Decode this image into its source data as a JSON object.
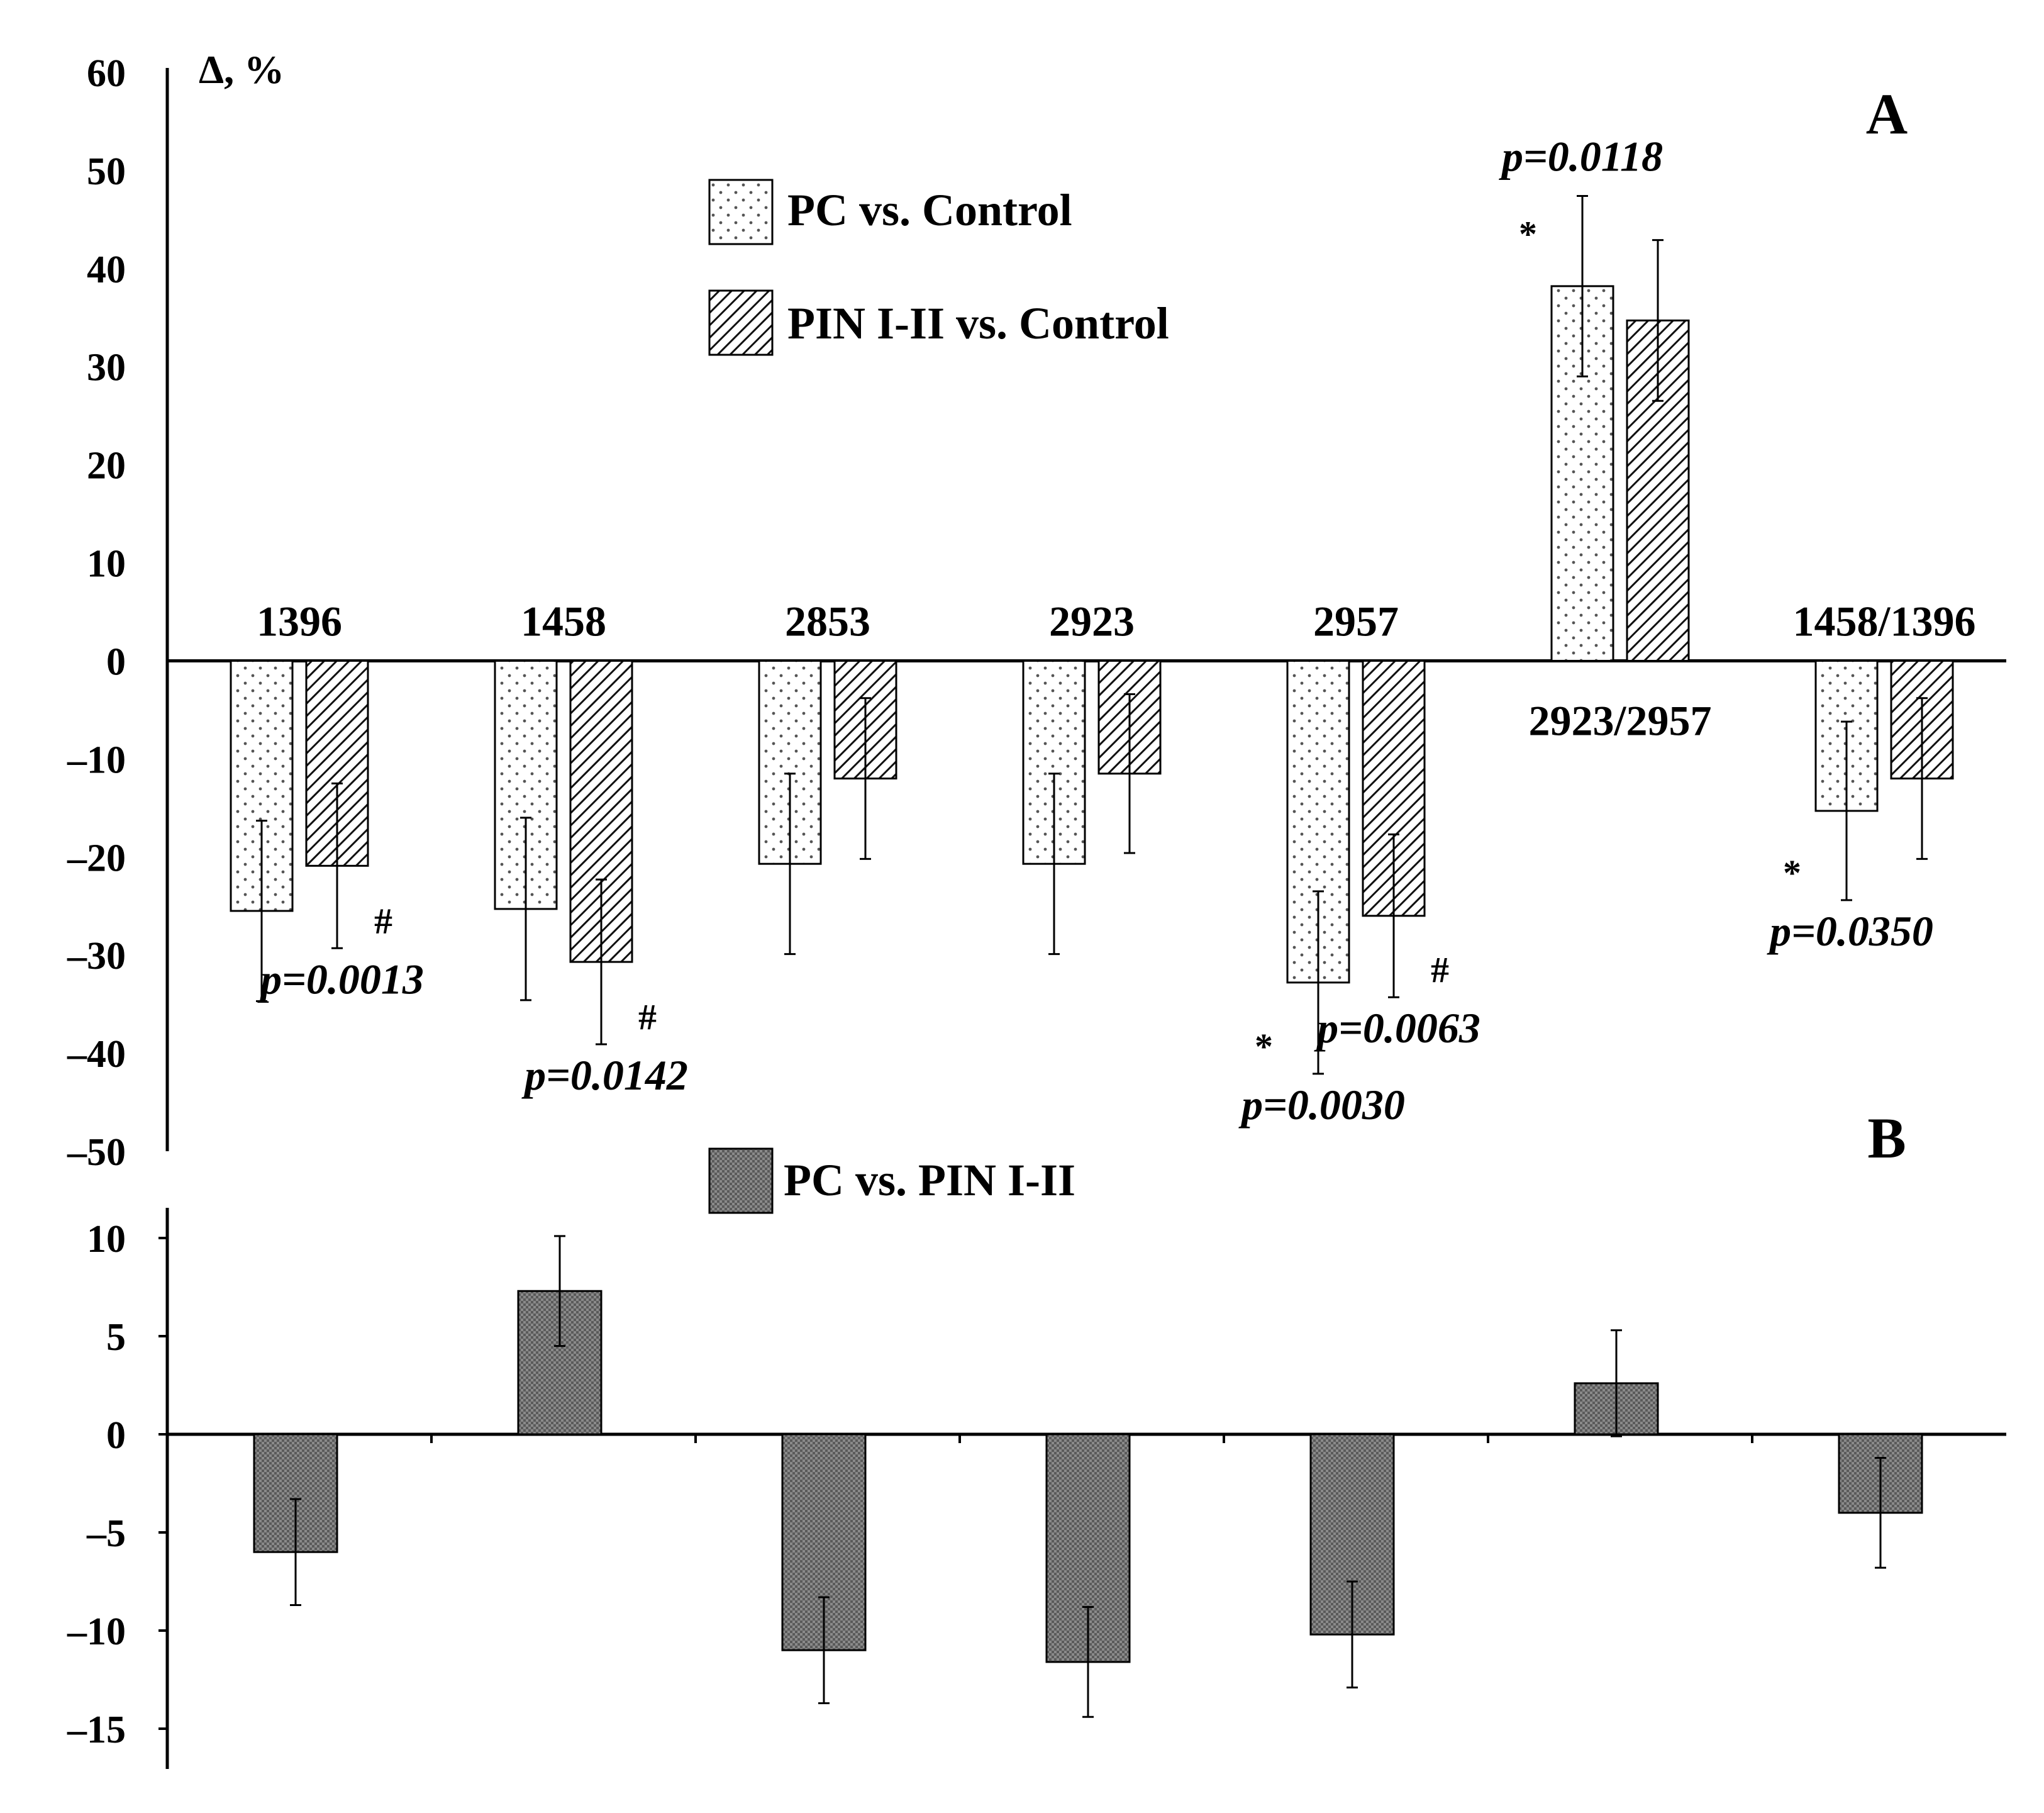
{
  "chart_data": [
    {
      "panel": "A",
      "type": "bar",
      "ylabel": "Δ, %",
      "ylim": [
        -50,
        60
      ],
      "yticks": [
        60,
        50,
        40,
        30,
        20,
        10,
        0,
        -10,
        -20,
        -30,
        -40,
        -50
      ],
      "ytick_labels": [
        "60",
        "50",
        "40",
        "30",
        "20",
        "10",
        "0",
        "–10",
        "–20",
        "–30",
        "–40",
        "–50"
      ],
      "categories": [
        "1396",
        "1458",
        "2853",
        "2923",
        "2957",
        "2923/2957",
        "1458/1396"
      ],
      "series": [
        {
          "name": "PC vs. Control",
          "pattern": "dotted",
          "values": [
            -25.5,
            -25.3,
            -20.7,
            -20.7,
            -32.8,
            38.2,
            -15.3
          ],
          "errors": [
            9.2,
            9.3,
            9.2,
            9.2,
            9.3,
            9.2,
            9.1
          ],
          "marks": [
            "",
            "",
            "",
            "",
            "*",
            "*",
            "*"
          ],
          "pvalues": [
            "",
            "",
            "",
            "",
            "p=0.0030",
            "p=0.0118",
            "p=0.0350"
          ]
        },
        {
          "name": "PIN I-II vs. Control",
          "pattern": "hatched",
          "values": [
            -20.9,
            -30.7,
            -12.0,
            -11.5,
            -26.0,
            34.7,
            -12.0
          ],
          "errors": [
            8.4,
            8.4,
            8.2,
            8.1,
            8.3,
            8.2,
            8.2
          ],
          "marks": [
            "#",
            "#",
            "",
            "",
            "#",
            "",
            ""
          ],
          "pvalues": [
            "p=0.0013",
            "p=0.0142",
            "",
            "",
            "p=0.0063",
            "",
            ""
          ]
        }
      ]
    },
    {
      "panel": "B",
      "type": "bar",
      "ylim": [
        -17,
        12
      ],
      "yticks": [
        10,
        5,
        0,
        -5,
        -10,
        -15
      ],
      "ytick_labels": [
        "10",
        "5",
        "0",
        "–5",
        "–10",
        "–15"
      ],
      "series": [
        {
          "name": "PC vs. PIN I-II",
          "pattern": "dense",
          "values": [
            -6.0,
            7.3,
            -11.0,
            -11.6,
            -10.2,
            2.6,
            -4.0
          ],
          "errors": [
            2.7,
            2.8,
            2.7,
            2.8,
            2.7,
            2.7,
            2.8
          ]
        }
      ]
    }
  ]
}
